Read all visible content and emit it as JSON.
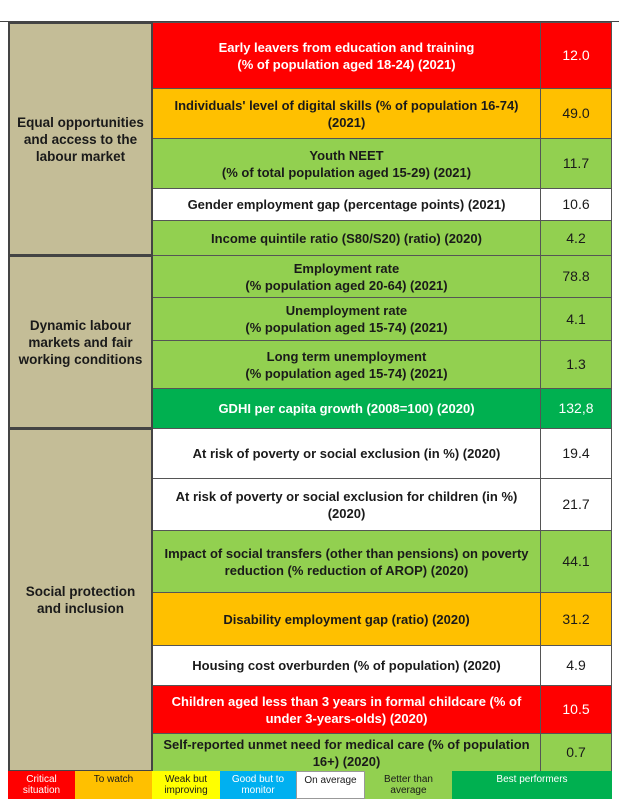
{
  "groups": [
    {
      "label": "Equal opportunities and access to the labour market",
      "rows": [
        {
          "indicator": "Early leavers from education and training\n(% of population aged 18-24) (2021)",
          "value": "12.0",
          "color": "#ff0000"
        },
        {
          "indicator": "Individuals' level of digital skills (% of population 16-74) (2021)",
          "value": "49.0",
          "color": "#ffc000"
        },
        {
          "indicator": "Youth NEET\n(% of total population aged 15-29) (2021)",
          "value": "11.7",
          "color": "#92d050"
        },
        {
          "indicator": "Gender employment gap (percentage points) (2021)",
          "value": "10.6",
          "color": "#ffffff"
        },
        {
          "indicator": "Income quintile ratio (S80/S20) (ratio) (2020)",
          "value": "4.2",
          "color": "#92d050"
        }
      ]
    },
    {
      "label": "Dynamic labour markets and fair working conditions",
      "rows": [
        {
          "indicator": "Employment rate\n(% population aged 20-64) (2021)",
          "value": "78.8",
          "color": "#92d050"
        },
        {
          "indicator": "Unemployment rate\n(% population aged 15-74) (2021)",
          "value": "4.1",
          "color": "#92d050"
        },
        {
          "indicator": "Long term unemployment\n(% population aged 15-74) (2021)",
          "value": "1.3",
          "color": "#92d050"
        },
        {
          "indicator": "GDHI per capita growth (2008=100) (2020)",
          "value": "132,8",
          "color": "#00b050"
        }
      ]
    },
    {
      "label": "Social protection and inclusion",
      "rows": [
        {
          "indicator": "At risk of poverty or social exclusion (in %) (2020)",
          "value": "19.4",
          "color": "#ffffff"
        },
        {
          "indicator": "At risk of poverty or social exclusion for children (in %) (2020)",
          "value": "21.7",
          "color": "#ffffff"
        },
        {
          "indicator": "Impact of social transfers (other than pensions) on poverty reduction (% reduction of AROP) (2020)",
          "value": "44.1",
          "color": "#92d050"
        },
        {
          "indicator": "Disability employment gap (ratio) (2020)",
          "value": "31.2",
          "color": "#ffc000"
        },
        {
          "indicator": "Housing cost overburden (% of population) (2020)",
          "value": "4.9",
          "color": "#ffffff"
        },
        {
          "indicator": "Children aged less than 3 years in formal childcare (% of under 3-years-olds) (2020)",
          "value": "10.5",
          "color": "#ff0000"
        },
        {
          "indicator": "Self-reported unmet need for medical care (% of population 16+) (2020)",
          "value": "0.7",
          "color": "#92d050"
        }
      ]
    }
  ],
  "legend": [
    {
      "label": "Critical situation",
      "color": "#ff0000"
    },
    {
      "label": "To watch",
      "color": "#ffc000"
    },
    {
      "label": "Weak but improving",
      "color": "#ffff00"
    },
    {
      "label": "Good but to monitor",
      "color": "#00b0f0"
    },
    {
      "label": "On average",
      "color": "#ffffff"
    },
    {
      "label": "Better than average",
      "color": "#92d050"
    },
    {
      "label": "Best performers",
      "color": "#00b050"
    }
  ]
}
